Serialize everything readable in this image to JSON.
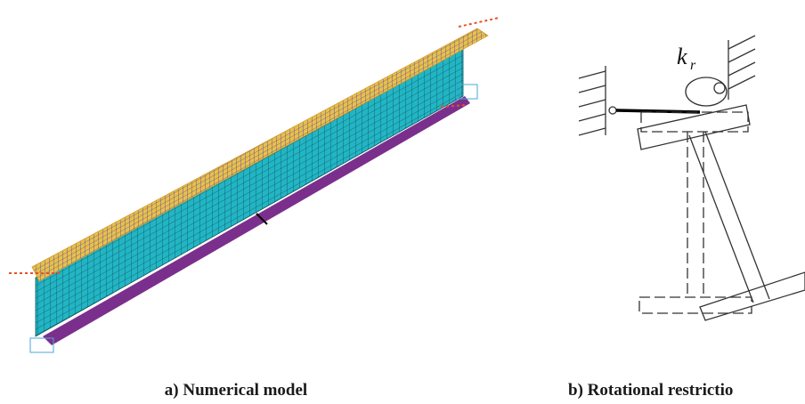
{
  "captions": [
    "a) Numerical model",
    "b) Rotational restrictio"
  ],
  "diagram_b": {
    "symbol": {
      "base": "k",
      "subscript": "r"
    }
  }
}
